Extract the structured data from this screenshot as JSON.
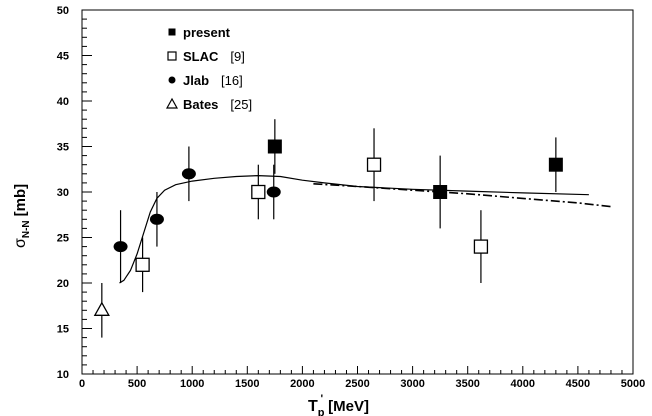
{
  "chart_data": {
    "type": "scatter",
    "title": "",
    "xlabel": {
      "main": "T",
      "sub": "p",
      "sup": "'",
      "unit": "[MeV]"
    },
    "ylabel": {
      "main": "σ",
      "sub": "N-N",
      "unit": "[mb]"
    },
    "xlim": [
      0,
      5000
    ],
    "ylim": [
      10,
      50
    ],
    "xticks": [
      "0",
      "500",
      "1000",
      "1500",
      "2000",
      "2500",
      "3000",
      "3500",
      "4000",
      "4500",
      "5000"
    ],
    "yticks": [
      "10",
      "15",
      "20",
      "25",
      "30",
      "35",
      "40",
      "45",
      "50"
    ],
    "grid": false,
    "legend_position": "top-left",
    "series": [
      {
        "name": "present",
        "label_suffix": "",
        "marker": "filled-square",
        "points": [
          {
            "x": 1750,
            "y": 35,
            "err": 3
          },
          {
            "x": 3250,
            "y": 30,
            "err": 4
          },
          {
            "x": 4300,
            "y": 33,
            "err": 3
          }
        ]
      },
      {
        "name": "SLAC",
        "label_suffix": "[9]",
        "marker": "open-square",
        "points": [
          {
            "x": 550,
            "y": 22,
            "err": 3
          },
          {
            "x": 1600,
            "y": 30,
            "err": 3
          },
          {
            "x": 2650,
            "y": 33,
            "err": 4
          },
          {
            "x": 3620,
            "y": 24,
            "err": 4
          }
        ]
      },
      {
        "name": "Jlab",
        "label_suffix": "[16]",
        "marker": "filled-circle",
        "points": [
          {
            "x": 350,
            "y": 24,
            "err": 4
          },
          {
            "x": 680,
            "y": 27,
            "err": 3
          },
          {
            "x": 970,
            "y": 32,
            "err": 3
          },
          {
            "x": 1740,
            "y": 30,
            "err": 3
          }
        ]
      },
      {
        "name": "Bates",
        "label_suffix": "[25]",
        "marker": "open-triangle",
        "points": [
          {
            "x": 180,
            "y": 17,
            "err": 3
          }
        ]
      }
    ],
    "curves": [
      {
        "style": "solid",
        "points": [
          [
            340,
            20
          ],
          [
            380,
            20.3
          ],
          [
            440,
            21.4
          ],
          [
            500,
            23.2
          ],
          [
            560,
            25.5
          ],
          [
            620,
            27.8
          ],
          [
            680,
            29.3
          ],
          [
            750,
            30.2
          ],
          [
            850,
            30.8
          ],
          [
            1000,
            31.2
          ],
          [
            1200,
            31.5
          ],
          [
            1400,
            31.7
          ],
          [
            1600,
            31.8
          ],
          [
            1800,
            31.7
          ],
          [
            2000,
            31.3
          ],
          [
            2200,
            31.0
          ],
          [
            2500,
            30.6
          ],
          [
            3000,
            30.3
          ],
          [
            3500,
            30.1
          ],
          [
            4000,
            29.9
          ],
          [
            4600,
            29.7
          ]
        ]
      },
      {
        "style": "dash-dot",
        "points": [
          [
            2100,
            30.9
          ],
          [
            2500,
            30.6
          ],
          [
            3000,
            30.2
          ],
          [
            3500,
            29.8
          ],
          [
            4000,
            29.3
          ],
          [
            4500,
            28.8
          ],
          [
            4800,
            28.4
          ]
        ]
      }
    ]
  }
}
